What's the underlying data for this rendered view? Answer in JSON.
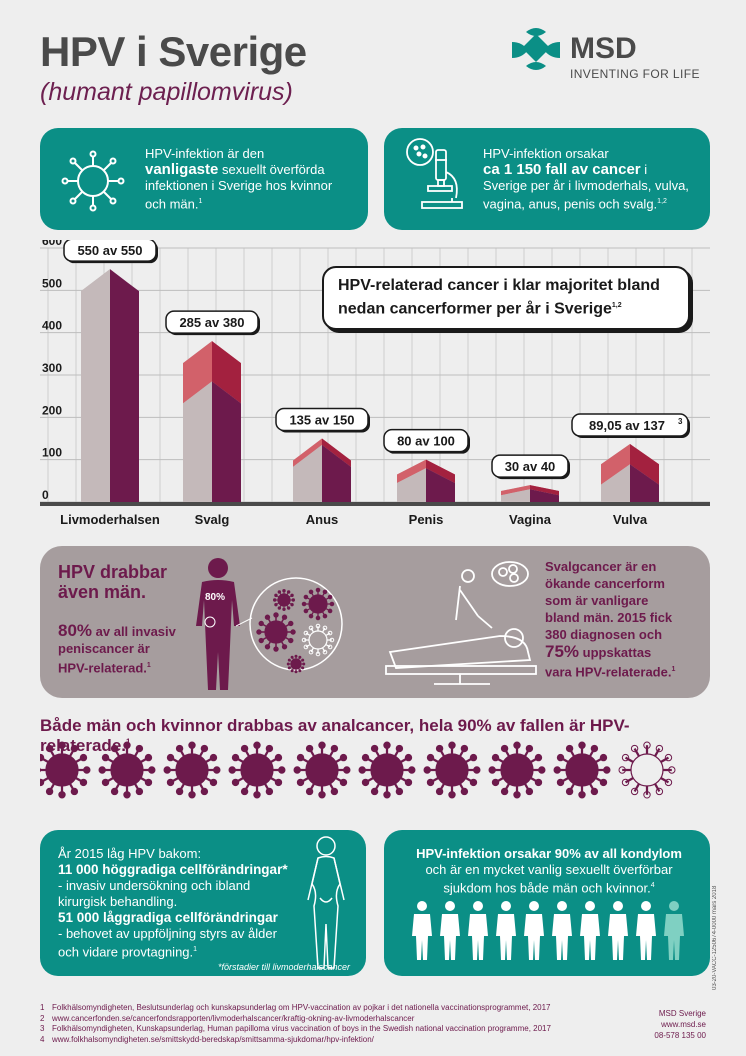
{
  "header": {
    "title": "HPV i Sverige",
    "subtitle": "(humant papillomvirus)",
    "brand": "MSD",
    "tagline": "INVENTING FOR LIFE"
  },
  "box1": {
    "line1": "HPV-infektion är den",
    "bold": "vanligaste",
    "line2": " sexuellt överförda",
    "line3": "infektionen i Sverige hos kvinnor",
    "line4": "och män.",
    "sup": "1"
  },
  "box2": {
    "line1": "HPV-infektion orsakar",
    "bold": "ca 1 150 fall av cancer",
    "line2": " i",
    "line3": "Sverige per år i livmoderhals, vulva,",
    "line4": "vagina, anus, penis och svalg.",
    "sup": "1,2"
  },
  "callout": {
    "text": "HPV-relaterad cancer i klar majoritet bland nedan cancerformer per år i Sverige",
    "sup": "1,2"
  },
  "chart_data": {
    "type": "bar",
    "categories": [
      "Livmoderhalsen",
      "Svalg",
      "Anus",
      "Penis",
      "Vagina",
      "Vulva"
    ],
    "series": [
      {
        "values": [
          550,
          285,
          135,
          80,
          30,
          89.05
        ]
      },
      {
        "values": [
          550,
          380,
          150,
          100,
          40,
          137
        ]
      }
    ],
    "data_labels": [
      "550 av 550",
      "285 av 380",
      "135 av 150",
      "80 av 100",
      "30 av 40",
      "89,05 av 137"
    ],
    "data_label_sups": [
      "",
      "",
      "",
      "",
      "",
      "3"
    ],
    "yticks": [
      "0",
      "100",
      "200",
      "300",
      "400",
      "500",
      "600"
    ],
    "ylim": [
      0,
      600
    ],
    "grid": true,
    "colors": {
      "hpv": "#6d1a4c",
      "total": "#d2616a",
      "bg": "#c4b9ba"
    }
  },
  "men": {
    "title_line1": "HPV drabbar",
    "title_line2": "även män.",
    "pct": "80%",
    "text_line1": " av all invasiv",
    "text_line2": "peniscancer är",
    "text_line3": "HPV-relaterad.",
    "sup": "1",
    "body_pct": "80%"
  },
  "svalg": {
    "line1": "Svalgcancer är en",
    "line2": "ökande cancerform",
    "line3": "som är vanligare",
    "line4": "bland män. 2015 fick",
    "line5": "380 diagnosen och",
    "pct": "75%",
    "line6": " uppskattas",
    "line7": "vara HPV-relaterade.",
    "sup": "1"
  },
  "anal": {
    "heading": "Både män och kvinnor drabbas av analcancer, hela 90% av fallen är HPV-relaterade.",
    "sup": "1",
    "virus_filled": 9,
    "virus_total": 10
  },
  "box3": {
    "line1": "År 2015 låg HPV bakom:",
    "bold1": "11 000 höggradiga cellförändringar*",
    "line2": "- invasiv undersökning och ibland",
    "line3": "kirurgisk behandling.",
    "bold2": "51 000 låggradiga cellförändringar",
    "line4": "- behovet av uppföljning styrs av ålder",
    "line5": "och vidare provtagning.",
    "sup": "1",
    "note": "*förstadier till livmoderhalscancer"
  },
  "box4": {
    "bold": "HPV-infektion orsakar 90% av all kondylom",
    "line1": "och är en mycket vanlig sexuellt överförbar",
    "line2": "sjukdom hos både män och kvinnor.",
    "sup": "4",
    "figures_white": 9,
    "figures_total": 10
  },
  "vertical_code": "03-20-VACC-1250674-0000 mars 2018",
  "references": [
    {
      "n": "1",
      "text": "Folkhälsomyndigheten, Beslutsunderlag och kunskapsunderlag om HPV-vaccination av pojkar i det nationella vaccinationsprogrammet, 2017"
    },
    {
      "n": "2",
      "text": "www.cancerfonden.se/cancerfondsrapporten/livmoderhalscancer/kraftig-okning-av-livmoderhalscancer"
    },
    {
      "n": "3",
      "text": "Folkhälsomyndigheten, Kunskapsunderlag, Human papilloma virus vaccination of boys in the Swedish national vaccination programme, 2017"
    },
    {
      "n": "4",
      "text": "www.folkhalsomyndigheten.se/smittskydd-beredskap/smittsamma-sjukdomar/hpv-infektion/"
    }
  ],
  "footer": {
    "company": "MSD Sverige",
    "web": "www.msd.se",
    "phone": "08-578 135 00"
  }
}
